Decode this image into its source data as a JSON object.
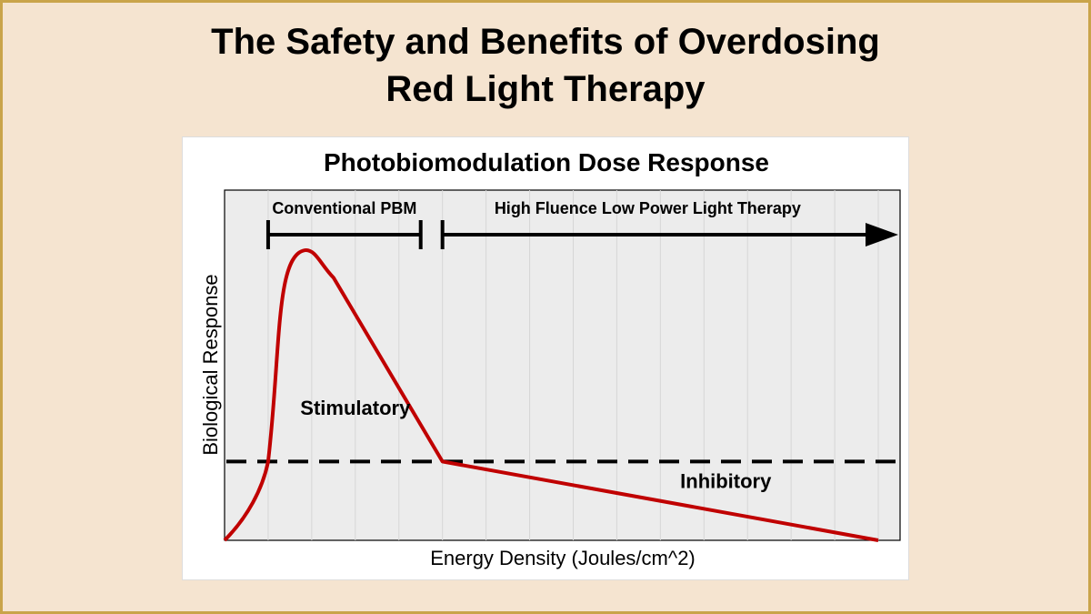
{
  "page": {
    "title_line1": "The Safety and Benefits of Overdosing",
    "title_line2": "Red Light Therapy"
  },
  "colors": {
    "background": "#f5e4d0",
    "border": "#c9a44a",
    "curve": "#c00000",
    "plot_area": "#ececec",
    "threshold": "#000000"
  },
  "chart_data": {
    "type": "line",
    "title": "Photobiomodulation Dose Response",
    "xlabel": "Energy Density (Joules/cm^2)",
    "ylabel": "Biological Response",
    "x_ticks_labeled": false,
    "y_ticks_labeled": false,
    "grid": "vertical",
    "series": [
      {
        "values_description": "biphasic dose response curve",
        "points": [
          [
            0,
            0
          ],
          [
            1.0,
            0.27
          ],
          [
            2.0,
            1.0
          ],
          [
            2.5,
            0.9
          ],
          [
            5.0,
            0.27
          ],
          [
            15.0,
            0.0
          ]
        ]
      }
    ],
    "xlim": [
      0,
      15.5
    ],
    "ylim": [
      0,
      1.2
    ],
    "threshold": 0.27,
    "regions": [
      {
        "label": "Conventional PBM",
        "x_start": 1.0,
        "x_end": 4.5,
        "arrow": false
      },
      {
        "label": "High Fluence Low Power Light Therapy",
        "x_start": 5.0,
        "x_end": 15.5,
        "arrow": true
      }
    ],
    "annotations": [
      {
        "text": "Stimulatory",
        "x": 3.0,
        "y": 0.43
      },
      {
        "text": "Inhibitory",
        "x": 11.5,
        "y": 0.18
      }
    ]
  }
}
